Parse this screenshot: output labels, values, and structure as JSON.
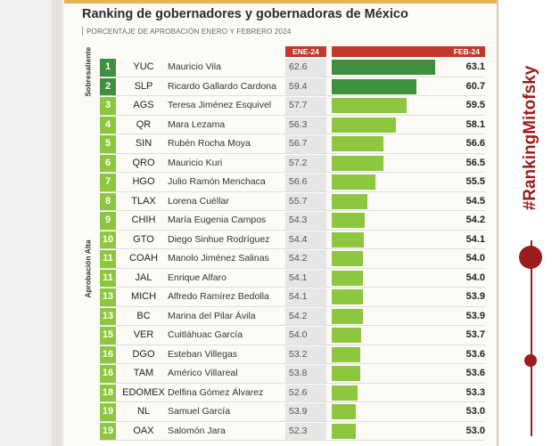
{
  "header": {
    "title": "Ranking de gobernadores y gobernadoras de México",
    "subtitle": "PORCENTAJE DE APROBACIÓN ENERO Y FEBRERO 2024",
    "col_jan": "ENE-24",
    "col_feb": "FEB-24"
  },
  "groups": {
    "top": "Sobresaliente",
    "high": "Aprobación Alta"
  },
  "hashtag": "#RankingMitofsky",
  "colors": {
    "dark_green": "#3f8f3f",
    "light_green": "#8dc63f",
    "header_red": "#c0392b",
    "brand_red": "#9b1c1c"
  },
  "chart_data": {
    "type": "bar",
    "title": "Ranking de gobernadores y gobernadoras de México",
    "subtitle": "PORCENTAJE DE APROBACIÓN ENERO Y FEBRERO 2024",
    "series": [
      {
        "name": "ENE-24",
        "values": [
          62.6,
          59.4,
          57.7,
          56.3,
          56.7,
          57.2,
          56.6,
          55.7,
          54.3,
          54.4,
          54.2,
          54.1,
          54.1,
          54.2,
          54.0,
          53.2,
          53.8,
          52.6,
          53.9,
          52.3
        ]
      },
      {
        "name": "FEB-24",
        "values": [
          63.1,
          60.7,
          59.5,
          58.1,
          56.6,
          56.5,
          55.5,
          54.5,
          54.2,
          54.1,
          54.0,
          54.0,
          53.9,
          53.9,
          53.7,
          53.6,
          53.6,
          53.3,
          53.0,
          53.0
        ]
      }
    ],
    "rows": [
      {
        "rank": "1",
        "state": "YUC",
        "name": "Mauricio Vila",
        "jan": "62.6",
        "feb": "63.1",
        "group": "top"
      },
      {
        "rank": "2",
        "state": "SLP",
        "name": "Ricardo Gallardo Cardona",
        "jan": "59.4",
        "feb": "60.7",
        "group": "top"
      },
      {
        "rank": "3",
        "state": "AGS",
        "name": "Teresa Jiménez Esquivel",
        "jan": "57.7",
        "feb": "59.5",
        "group": "high"
      },
      {
        "rank": "4",
        "state": "QR",
        "name": "Mara Lezama",
        "jan": "56.3",
        "feb": "58.1",
        "group": "high"
      },
      {
        "rank": "5",
        "state": "SIN",
        "name": "Rubén Rocha Moya",
        "jan": "56.7",
        "feb": "56.6",
        "group": "high"
      },
      {
        "rank": "6",
        "state": "QRO",
        "name": "Mauricio Kuri",
        "jan": "57.2",
        "feb": "56.5",
        "group": "high"
      },
      {
        "rank": "7",
        "state": "HGO",
        "name": "Julio Ramón Menchaca",
        "jan": "56.6",
        "feb": "55.5",
        "group": "high"
      },
      {
        "rank": "8",
        "state": "TLAX",
        "name": "Lorena Cuéllar",
        "jan": "55.7",
        "feb": "54.5",
        "group": "high"
      },
      {
        "rank": "9",
        "state": "CHIH",
        "name": "María Eugenia Campos",
        "jan": "54.3",
        "feb": "54.2",
        "group": "high"
      },
      {
        "rank": "10",
        "state": "GTO",
        "name": "Diego Sinhue Rodríguez",
        "jan": "54.4",
        "feb": "54.1",
        "group": "high"
      },
      {
        "rank": "11",
        "state": "COAH",
        "name": "Manolo Jiménez Salinas",
        "jan": "54.2",
        "feb": "54.0",
        "group": "high"
      },
      {
        "rank": "11",
        "state": "JAL",
        "name": "Enrique Alfaro",
        "jan": "54.1",
        "feb": "54.0",
        "group": "high"
      },
      {
        "rank": "13",
        "state": "MICH",
        "name": "Alfredo Ramírez Bedolla",
        "jan": "54.1",
        "feb": "53.9",
        "group": "high"
      },
      {
        "rank": "13",
        "state": "BC",
        "name": "Marina del Pilar Ávila",
        "jan": "54.2",
        "feb": "53.9",
        "group": "high"
      },
      {
        "rank": "15",
        "state": "VER",
        "name": "Cuitláhuac García",
        "jan": "54.0",
        "feb": "53.7",
        "group": "high"
      },
      {
        "rank": "16",
        "state": "DGO",
        "name": "Esteban Villegas",
        "jan": "53.2",
        "feb": "53.6",
        "group": "high"
      },
      {
        "rank": "16",
        "state": "TAM",
        "name": "Américo Villareal",
        "jan": "53.8",
        "feb": "53.6",
        "group": "high"
      },
      {
        "rank": "18",
        "state": "EDOMEX",
        "name": "Delfina Gómez Álvarez",
        "jan": "52.6",
        "feb": "53.3",
        "group": "high"
      },
      {
        "rank": "19",
        "state": "NL",
        "name": "Samuel García",
        "jan": "53.9",
        "feb": "53.0",
        "group": "high"
      },
      {
        "rank": "19",
        "state": "OAX",
        "name": "Salomón Jara",
        "jan": "52.3",
        "feb": "53.0",
        "group": "high"
      }
    ]
  }
}
